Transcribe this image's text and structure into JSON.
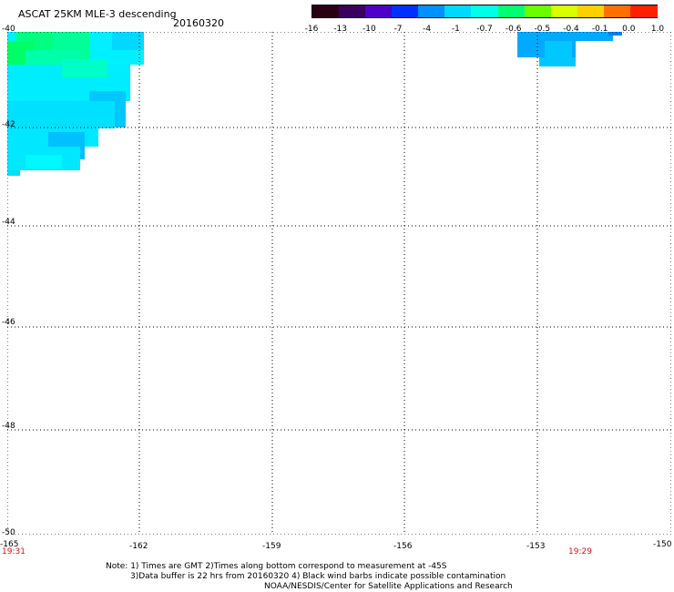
{
  "header": {
    "title": "ASCAT 25KM MLE-3 descending",
    "date": "20160320"
  },
  "colorbar": {
    "ticks": [
      "-16",
      "-13",
      "-10",
      "-7",
      "-4",
      "-1",
      "-0.7",
      "-0.6",
      "-0.5",
      "-0.4",
      "-0.1",
      "0.0",
      "1.0"
    ],
    "colors": [
      "#2a0015",
      "#3a0060",
      "#4c00c8",
      "#0030ff",
      "#0090ff",
      "#00d8ff",
      "#00ffe8",
      "#00ff70",
      "#6aff00",
      "#d8ff00",
      "#ffd000",
      "#ff7000",
      "#ff2000"
    ]
  },
  "map": {
    "lat_labels": [
      "-40",
      "-42",
      "-44",
      "-46",
      "-48",
      "-50"
    ],
    "lon_labels": [
      "-165",
      "-162",
      "-159",
      "-156",
      "-153",
      "-150"
    ],
    "time_left": "19:31",
    "time_right": "19:29",
    "lat_range": [
      -50,
      -40
    ],
    "lon_range": [
      -165,
      -150
    ]
  },
  "footer": {
    "line1": "Note: 1) Times are GMT 2)Times along bottom correspond to measurement at -45S",
    "line2": "3)Data buffer is 22 hrs from 20160320 4) Black wind barbs indicate possible contamination",
    "line3": "NOAA/NESDIS/Center for Satellite Applications and Research"
  }
}
